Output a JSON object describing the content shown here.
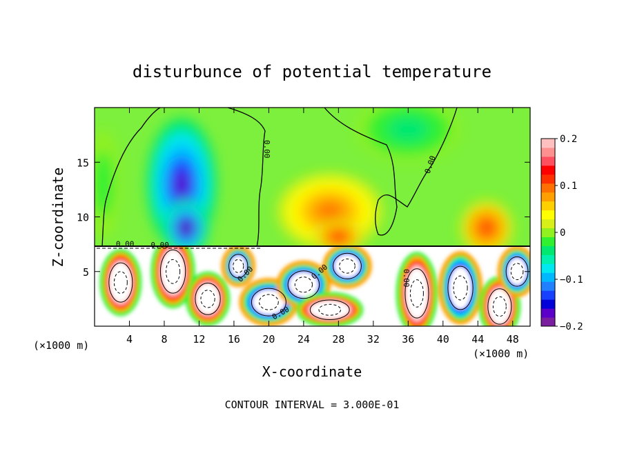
{
  "chart_data": {
    "type": "heatmap",
    "title": "disturbunce of potential temperature",
    "xlabel": "X-coordinate",
    "ylabel": "Z-coordinate",
    "x_unit": "(×1000 m)",
    "x_unit_right": "(×1000 m)",
    "xlim": [
      0,
      50
    ],
    "ylim": [
      0,
      20
    ],
    "x_ticks": [
      4,
      8,
      12,
      16,
      20,
      24,
      28,
      32,
      36,
      40,
      44,
      48
    ],
    "y_ticks": [
      5,
      10,
      15
    ],
    "footer": "CONTOUR INTERVAL = 3.000E-01",
    "colorbar": {
      "min": -0.2,
      "max": 0.2,
      "ticks": [
        {
          "value": 0.2,
          "label": "0.2"
        },
        {
          "value": 0.1,
          "label": "0.1"
        },
        {
          "value": 0,
          "label": "0"
        },
        {
          "value": -0.1,
          "label": "−0.1"
        },
        {
          "value": -0.2,
          "label": "−0.2"
        }
      ],
      "colors": [
        "#7a1fa0",
        "#5a00c8",
        "#0000d8",
        "#1840ff",
        "#2080ff",
        "#00b8ff",
        "#00e8f0",
        "#00f0b0",
        "#00e870",
        "#30f030",
        "#90f020",
        "#d8f018",
        "#ffff00",
        "#ffd000",
        "#ffa000",
        "#ff7000",
        "#ff3000",
        "#ff0000",
        "#ff5060",
        "#ff9090",
        "#ffc0c0"
      ]
    },
    "contour_labels": [
      {
        "x": 3.5,
        "z": 7.3,
        "text": "0.00",
        "rotate": 0
      },
      {
        "x": 7.5,
        "z": 7.2,
        "text": "0.00",
        "rotate": 0
      },
      {
        "x": 19.5,
        "z": 16.2,
        "text": "0.00",
        "rotate": 90
      },
      {
        "x": 38.8,
        "z": 14.7,
        "text": "0.00",
        "rotate": -70
      },
      {
        "x": 17.5,
        "z": 4.6,
        "text": "0.00",
        "rotate": -45
      },
      {
        "x": 26.0,
        "z": 4.8,
        "text": "0.00",
        "rotate": -40
      },
      {
        "x": 21.5,
        "z": 1.0,
        "text": "0.00",
        "rotate": -30
      },
      {
        "x": 35.5,
        "z": 4.4,
        "text": "0.00",
        "rotate": 90
      }
    ],
    "upper_field": [
      {
        "x": 10,
        "z": 13,
        "value": -0.18,
        "sx": 4.0,
        "sz": 6.0
      },
      {
        "x": 10.5,
        "z": 9,
        "value": -0.2,
        "sx": 2.6,
        "sz": 2.5
      },
      {
        "x": 27,
        "z": 10.5,
        "value": 0.09,
        "sx": 6.0,
        "sz": 3.5
      },
      {
        "x": 28,
        "z": 8.2,
        "value": 0.14,
        "sx": 3.0,
        "sz": 1.5
      },
      {
        "x": 45,
        "z": 9,
        "value": 0.13,
        "sx": 3.0,
        "sz": 2.5
      },
      {
        "x": 36,
        "z": 18,
        "value": -0.05,
        "sx": 6.0,
        "sz": 3.0
      },
      {
        "x": 1,
        "z": 13,
        "value": -0.02,
        "sx": 2.0,
        "sz": 5.0
      }
    ],
    "lower_field": [
      {
        "x": 9,
        "z": 5,
        "value": 0.6,
        "sx": 1.6,
        "sz": 2.2
      },
      {
        "x": 3,
        "z": 4,
        "value": 0.5,
        "sx": 1.5,
        "sz": 2.0
      },
      {
        "x": 13,
        "z": 2.5,
        "value": 0.5,
        "sx": 1.6,
        "sz": 1.6
      },
      {
        "x": 20,
        "z": 2.2,
        "value": -0.3,
        "sx": 2.2,
        "sz": 1.4
      },
      {
        "x": 24,
        "z": 3.8,
        "value": -0.3,
        "sx": 2.0,
        "sz": 1.4
      },
      {
        "x": 29,
        "z": 5.5,
        "value": -0.35,
        "sx": 1.8,
        "sz": 1.3
      },
      {
        "x": 27,
        "z": 1.5,
        "value": 0.25,
        "sx": 2.5,
        "sz": 1.0
      },
      {
        "x": 37,
        "z": 3,
        "value": 0.3,
        "sx": 1.5,
        "sz": 2.5
      },
      {
        "x": 42,
        "z": 3.5,
        "value": -0.2,
        "sx": 1.6,
        "sz": 2.2
      },
      {
        "x": 46.5,
        "z": 1.8,
        "value": 0.4,
        "sx": 1.5,
        "sz": 1.8
      },
      {
        "x": 48.5,
        "z": 5,
        "value": -0.2,
        "sx": 1.4,
        "sz": 1.5
      },
      {
        "x": 16.5,
        "z": 5.5,
        "value": -0.2,
        "sx": 1.2,
        "sz": 1.2
      }
    ]
  }
}
